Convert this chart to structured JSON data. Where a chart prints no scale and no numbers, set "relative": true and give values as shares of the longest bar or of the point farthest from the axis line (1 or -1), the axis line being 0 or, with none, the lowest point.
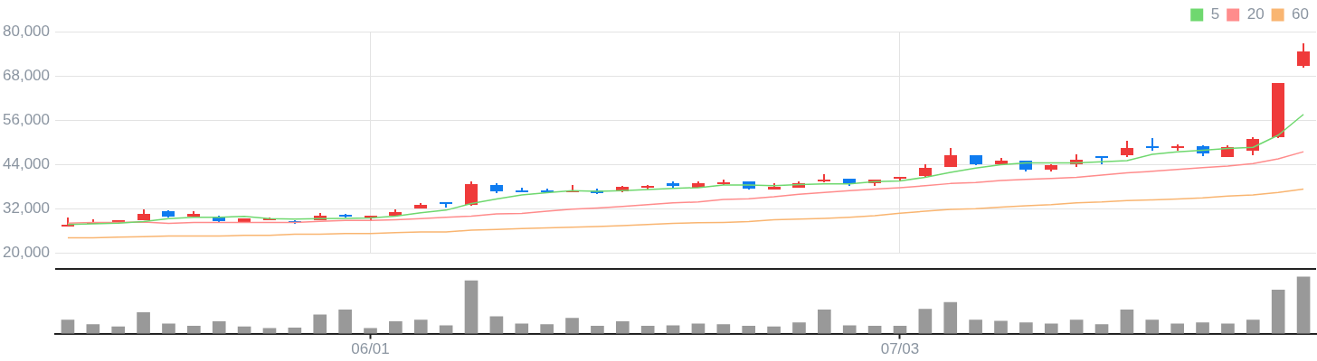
{
  "chart_data": [
    {
      "type": "candlestick",
      "categories": [
        null,
        null,
        null,
        null,
        null,
        null,
        null,
        null,
        null,
        null,
        null,
        null,
        null,
        null,
        null,
        null,
        null,
        null,
        null,
        null,
        null,
        null,
        null,
        null,
        null,
        null,
        null,
        null,
        null,
        null,
        null,
        null,
        null,
        null,
        null,
        null,
        null,
        null,
        null,
        null,
        null,
        null,
        null,
        null,
        null,
        null,
        null,
        null,
        null,
        null
      ],
      "ohlc": [
        [
          27300,
          29800,
          27300,
          27800
        ],
        [
          27900,
          29300,
          27900,
          28600
        ],
        [
          28700,
          29100,
          27900,
          29100
        ],
        [
          29100,
          31800,
          28900,
          30800
        ],
        [
          31400,
          31700,
          29800,
          30000
        ],
        [
          30000,
          31400,
          29800,
          30700
        ],
        [
          30000,
          30200,
          28600,
          28800
        ],
        [
          28600,
          29500,
          28400,
          29500
        ],
        [
          28900,
          29600,
          28900,
          29400
        ],
        [
          28800,
          29100,
          28100,
          28500
        ],
        [
          29100,
          30900,
          29100,
          30200
        ],
        [
          30400,
          30700,
          29600,
          30100
        ],
        [
          29700,
          30100,
          29100,
          30100
        ],
        [
          30200,
          31800,
          30000,
          31200
        ],
        [
          32100,
          33700,
          32100,
          33200
        ],
        [
          33800,
          33800,
          32500,
          33500
        ],
        [
          33200,
          39600,
          33000,
          38700
        ],
        [
          38500,
          38900,
          36400,
          36900
        ],
        [
          37100,
          37800,
          36600,
          36600
        ],
        [
          37100,
          37600,
          36200,
          36600
        ],
        [
          36600,
          38500,
          36600,
          37100
        ],
        [
          37100,
          37600,
          36000,
          36400
        ],
        [
          36900,
          38300,
          36600,
          38000
        ],
        [
          37800,
          38500,
          37300,
          38300
        ],
        [
          38900,
          39400,
          37800,
          38300
        ],
        [
          37800,
          39600,
          37800,
          38900
        ],
        [
          38700,
          39900,
          38500,
          39200
        ],
        [
          39400,
          39400,
          37300,
          37600
        ],
        [
          37300,
          38900,
          37300,
          38000
        ],
        [
          37800,
          39400,
          37800,
          38900
        ],
        [
          39400,
          41500,
          39200,
          39900
        ],
        [
          40100,
          40100,
          38300,
          38900
        ],
        [
          38900,
          39900,
          38300,
          39900
        ],
        [
          40100,
          40800,
          39600,
          40600
        ],
        [
          41000,
          44200,
          40800,
          43100
        ],
        [
          43500,
          48600,
          43300,
          46500
        ],
        [
          46500,
          46500,
          43800,
          44000
        ],
        [
          44000,
          45800,
          43800,
          45200
        ],
        [
          45200,
          45200,
          42200,
          42600
        ],
        [
          42600,
          44200,
          42200,
          43800
        ],
        [
          44200,
          46700,
          43500,
          45400
        ],
        [
          46300,
          46300,
          44000,
          45800
        ],
        [
          46500,
          50400,
          46100,
          48600
        ],
        [
          49100,
          51100,
          47900,
          48600
        ],
        [
          48600,
          49500,
          47900,
          49100
        ],
        [
          49100,
          49300,
          46300,
          47000
        ],
        [
          46100,
          49300,
          46100,
          48800
        ],
        [
          47900,
          51400,
          46500,
          50900
        ],
        [
          51400,
          66100,
          51100,
          66100
        ],
        [
          70700,
          76900,
          70200,
          74600
        ]
      ],
      "colors": [
        "#ef3a3a",
        "#ef3a3a",
        "#ef3a3a",
        "#ef3a3a",
        "#0f7cf0",
        "#ef3a3a",
        "#0f7cf0",
        "#ef3a3a",
        "#ef3a3a",
        "#0f7cf0",
        "#ef3a3a",
        "#0f7cf0",
        "#ef3a3a",
        "#ef3a3a",
        "#ef3a3a",
        "#0f7cf0",
        "#ef3a3a",
        "#0f7cf0",
        "#0f7cf0",
        "#0f7cf0",
        "#ef3a3a",
        "#0f7cf0",
        "#ef3a3a",
        "#ef3a3a",
        "#0f7cf0",
        "#ef3a3a",
        "#ef3a3a",
        "#0f7cf0",
        "#ef3a3a",
        "#ef3a3a",
        "#ef3a3a",
        "#0f7cf0",
        "#ef3a3a",
        "#ef3a3a",
        "#ef3a3a",
        "#ef3a3a",
        "#0f7cf0",
        "#ef3a3a",
        "#0f7cf0",
        "#ef3a3a",
        "#ef3a3a",
        "#0f7cf0",
        "#ef3a3a",
        "#0f7cf0",
        "#ef3a3a",
        "#0f7cf0",
        "#ef3a3a",
        "#ef3a3a",
        "#ef3a3a",
        "#ef3a3a"
      ],
      "series": [
        {
          "type": "line",
          "name": "5",
          "color": "#6fd86f",
          "values": [
            27800,
            28000,
            28200,
            28600,
            29400,
            29800,
            29800,
            30000,
            29400,
            29300,
            29400,
            29500,
            29600,
            30100,
            31000,
            31700,
            33500,
            34700,
            35800,
            36400,
            37000,
            36800,
            37000,
            37300,
            37600,
            37800,
            38500,
            38500,
            38300,
            38600,
            38800,
            38800,
            39400,
            39600,
            40600,
            41900,
            43100,
            44000,
            44500,
            44500,
            44500,
            44800,
            45100,
            46800,
            47500,
            47900,
            48400,
            48700,
            52000,
            57600
          ]
        },
        {
          "type": "line",
          "name": "20",
          "color": "#ff8c8c",
          "values": [
            28200,
            28400,
            28400,
            28500,
            28100,
            28400,
            28400,
            28400,
            28400,
            28400,
            28700,
            28900,
            28900,
            29100,
            29400,
            29800,
            30100,
            30700,
            30800,
            31400,
            32000,
            32300,
            32700,
            33200,
            33700,
            33900,
            34600,
            34800,
            35300,
            36000,
            36500,
            37000,
            37400,
            37800,
            38300,
            38900,
            39200,
            39700,
            40000,
            40300,
            40600,
            41200,
            41800,
            42200,
            42700,
            43200,
            43600,
            44300,
            45600,
            47500
          ]
        },
        {
          "type": "line",
          "name": "60",
          "color": "#f9b571",
          "values": [
            24200,
            24200,
            24400,
            24500,
            24700,
            24700,
            24700,
            24900,
            24900,
            25200,
            25200,
            25400,
            25400,
            25600,
            25800,
            25800,
            26300,
            26500,
            26700,
            26900,
            27100,
            27300,
            27500,
            27800,
            28100,
            28300,
            28400,
            28600,
            29100,
            29300,
            29500,
            29800,
            30200,
            30900,
            31400,
            31900,
            32100,
            32500,
            32900,
            33200,
            33700,
            33900,
            34300,
            34500,
            34700,
            35000,
            35500,
            35800,
            36500,
            37400
          ]
        }
      ],
      "ylim": [
        20000,
        80000
      ],
      "yticks": [
        {
          "value": 20000,
          "label": "20,000"
        },
        {
          "value": 32000,
          "label": "32,000"
        },
        {
          "value": 44000,
          "label": "44,000"
        },
        {
          "value": 56000,
          "label": "56,000"
        },
        {
          "value": 68000,
          "label": "68,000"
        },
        {
          "value": 80000,
          "label": "80,000"
        }
      ],
      "grid": true,
      "legend": "top right",
      "tick_labels": "y"
    },
    {
      "type": "bar",
      "relative": true,
      "tick_labels": "x",
      "color": "#999999",
      "categories": [
        null,
        null,
        null,
        null,
        null,
        null,
        null,
        null,
        null,
        null,
        null,
        null,
        "06/01",
        null,
        null,
        null,
        null,
        null,
        null,
        null,
        null,
        null,
        null,
        null,
        null,
        null,
        null,
        null,
        null,
        null,
        null,
        null,
        null,
        "07/03",
        null,
        null,
        null,
        null,
        null,
        null,
        null,
        null,
        null,
        null,
        null,
        null,
        null,
        null,
        null,
        null
      ],
      "values": [
        0.24,
        0.16,
        0.12,
        0.37,
        0.17,
        0.13,
        0.21,
        0.12,
        0.09,
        0.1,
        0.33,
        0.42,
        0.09,
        0.21,
        0.24,
        0.14,
        0.93,
        0.3,
        0.17,
        0.16,
        0.27,
        0.13,
        0.21,
        0.13,
        0.14,
        0.17,
        0.16,
        0.13,
        0.12,
        0.19,
        0.42,
        0.14,
        0.13,
        0.13,
        0.43,
        0.55,
        0.24,
        0.22,
        0.19,
        0.17,
        0.24,
        0.16,
        0.42,
        0.24,
        0.17,
        0.19,
        0.17,
        0.24,
        0.77,
        1
      ]
    }
  ]
}
